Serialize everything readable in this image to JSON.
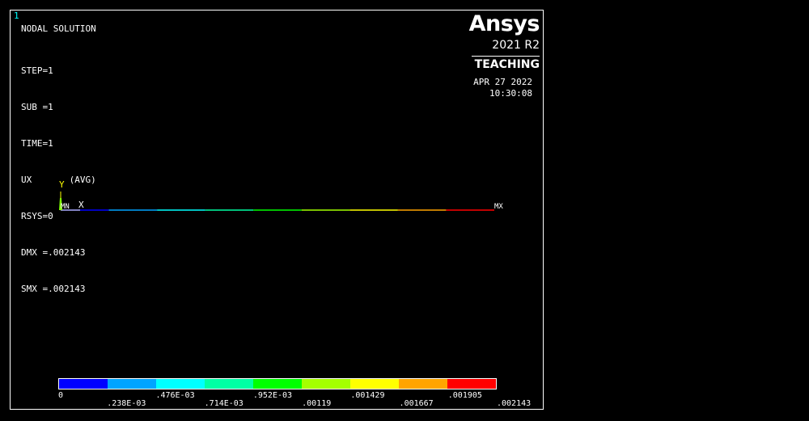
{
  "window": {
    "number": "1"
  },
  "header": {
    "title": "NODAL SOLUTION",
    "info": [
      "STEP=1",
      "SUB =1",
      "TIME=1",
      "UX       (AVG)",
      "RSYS=0",
      "DMX =.002143",
      "SMX =.002143"
    ]
  },
  "brand": {
    "logo": "Ansys",
    "version": "2021 R2",
    "edition": "TEACHING"
  },
  "timestamp": {
    "date": "APR 27 2022",
    "time": "10:30:08"
  },
  "triad": {
    "y_label": "Y",
    "x_label": "X",
    "mn_label": "MN",
    "mx_label": "MX"
  },
  "legend": {
    "colors": [
      "#0000ff",
      "#00a4ff",
      "#00ffff",
      "#00ffa4",
      "#00ff00",
      "#a4ff00",
      "#ffff00",
      "#ffa400",
      "#ff0000"
    ],
    "labels": [
      "0",
      ".238E-03",
      ".476E-03",
      ".714E-03",
      ".952E-03",
      ".00119",
      ".001429",
      ".001667",
      ".001905",
      ".002143"
    ]
  },
  "model": {
    "segment_colors": [
      "#0000ff",
      "#00a4ff",
      "#00ffff",
      "#00ffa4",
      "#00ff00",
      "#a4ff00",
      "#ffff00",
      "#ffa400",
      "#ff0000"
    ]
  }
}
